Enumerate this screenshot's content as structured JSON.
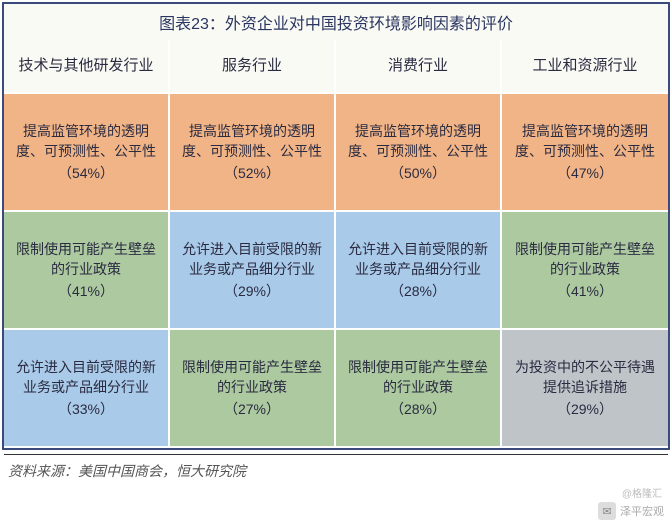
{
  "title": "图表23：外资企业对中国投资环境影响因素的评价",
  "colors": {
    "blue": "#a9cae8",
    "orange": "#f0b486",
    "green": "#acc9a0",
    "gray": "#bfc4c8",
    "header_bg": "#fafaf5"
  },
  "headers": [
    {
      "label": "技术与其他研发行业",
      "bg_key": "header_bg"
    },
    {
      "label": "服务行业",
      "bg_key": "header_bg"
    },
    {
      "label": "消费行业",
      "bg_key": "header_bg"
    },
    {
      "label": "工业和资源行业",
      "bg_key": "header_bg"
    }
  ],
  "rows": [
    [
      {
        "text": "提高监管环境的透明度、可预测性、公平性",
        "pct": "（54%）",
        "bg_key": "orange"
      },
      {
        "text": "提高监管环境的透明度、可预测性、公平性",
        "pct": "（52%）",
        "bg_key": "orange"
      },
      {
        "text": "提高监管环境的透明度、可预测性、公平性",
        "pct": "（50%）",
        "bg_key": "orange"
      },
      {
        "text": "提高监管环境的透明度、可预测性、公平性",
        "pct": "（47%）",
        "bg_key": "orange"
      }
    ],
    [
      {
        "text": "限制使用可能产生壁垒的行业政策",
        "pct": "（41%）",
        "bg_key": "green"
      },
      {
        "text": "允许进入目前受限的新业务或产品细分行业",
        "pct": "（29%）",
        "bg_key": "blue"
      },
      {
        "text": "允许进入目前受限的新业务或产品细分行业",
        "pct": "（28%）",
        "bg_key": "blue"
      },
      {
        "text": "限制使用可能产生壁垒的行业政策",
        "pct": "（41%）",
        "bg_key": "green"
      }
    ],
    [
      {
        "text": "允许进入目前受限的新业务或产品细分行业",
        "pct": "（33%）",
        "bg_key": "blue"
      },
      {
        "text": "限制使用可能产生壁垒的行业政策",
        "pct": "（27%）",
        "bg_key": "green"
      },
      {
        "text": "限制使用可能产生壁垒的行业政策",
        "pct": "（28%）",
        "bg_key": "green"
      },
      {
        "text": "为投资中的不公平待遇提供追诉措施",
        "pct": "（29%）",
        "bg_key": "gray"
      }
    ]
  ],
  "source": "资料来源：美国中国商会，恒大研究院",
  "footer_author": "泽平宏观",
  "watermark": "@格隆汇"
}
